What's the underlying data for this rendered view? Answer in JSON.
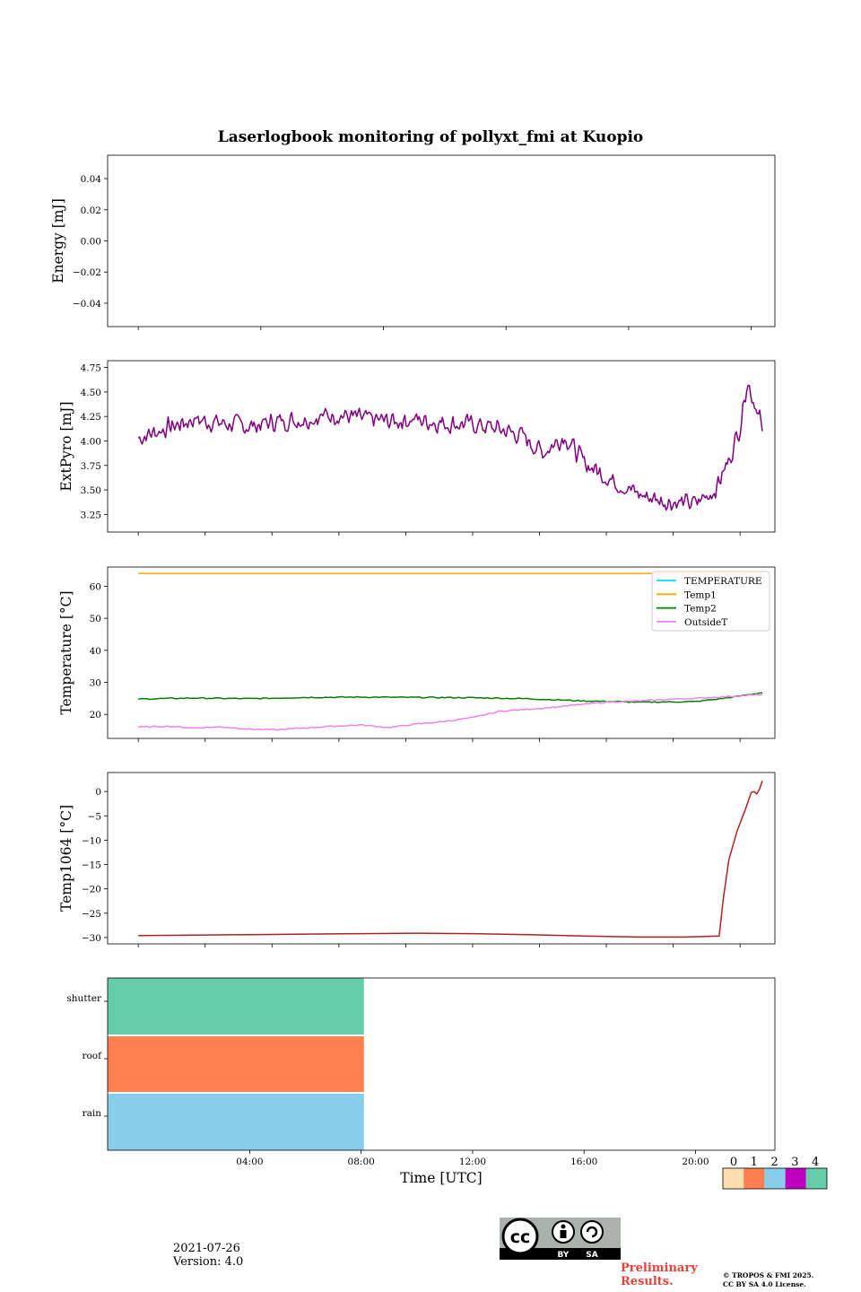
{
  "chart_data": {
    "title": "Laserlogbook monitoring of pollyxt_fmi at Kuopio",
    "x_axis": {
      "label": "Time [UTC]",
      "unit": "hours",
      "range": [
        -1.1,
        22.85
      ],
      "ticks": [
        4,
        8,
        12,
        16,
        20
      ],
      "tick_labels": [
        "04:00",
        "08:00",
        "12:00",
        "16:00",
        "20:00"
      ]
    },
    "panels": [
      {
        "name": "energy",
        "type": "line",
        "ylabel": "Energy [mJ]",
        "ylim": [
          -0.055,
          0.055
        ],
        "yticks": [
          0.04,
          0.02,
          0.0,
          -0.02,
          -0.04
        ],
        "ytick_labels": [
          "0.04",
          "0.02",
          "0.00",
          "−0.02",
          "−0.04"
        ],
        "series": []
      },
      {
        "name": "extpyro",
        "type": "line",
        "ylabel": "ExtPyro [mJ]",
        "ylim": [
          3.07,
          4.82
        ],
        "yticks": [
          4.75,
          4.5,
          4.25,
          4.0,
          3.75,
          3.5,
          3.25
        ],
        "ytick_labels": [
          "4.75",
          "4.50",
          "4.25",
          "4.00",
          "3.75",
          "3.50",
          "3.25"
        ],
        "series": [
          {
            "name": "ExtPyro",
            "color": "#800080",
            "x": [
              0.0,
              1.0,
              2.0,
              3.0,
              4.0,
              5.0,
              6.0,
              7.0,
              8.0,
              9.0,
              10.0,
              11.0,
              12.0,
              13.0,
              13.8,
              14.5,
              15.3,
              16.0,
              17.0,
              18.0,
              19.0,
              20.0,
              20.7,
              21.2,
              21.6,
              21.85,
              22.1,
              22.3,
              22.4
            ],
            "y": [
              4.03,
              4.13,
              4.22,
              4.18,
              4.15,
              4.2,
              4.22,
              4.27,
              4.23,
              4.2,
              4.22,
              4.18,
              4.17,
              4.12,
              4.05,
              3.88,
              4.05,
              3.78,
              3.6,
              3.45,
              3.38,
              3.36,
              3.5,
              3.8,
              4.15,
              4.62,
              4.4,
              4.3,
              4.02
            ],
            "noise_amplitude": 0.12
          }
        ]
      },
      {
        "name": "temperature",
        "type": "line",
        "ylabel": "Temperature [°C]",
        "ylim": [
          12.5,
          66.0
        ],
        "yticks": [
          60,
          50,
          40,
          30,
          20
        ],
        "ytick_labels": [
          "60",
          "50",
          "40",
          "30",
          "20"
        ],
        "legend": {
          "placement": "top-right",
          "entries": [
            "TEMPERATURE",
            "Temp1",
            "Temp2",
            "OutsideT"
          ]
        },
        "series": [
          {
            "name": "TEMPERATURE",
            "color": "#00e5ee",
            "x": [],
            "y": []
          },
          {
            "name": "Temp1",
            "color": "#ffa500",
            "x": [
              0.0,
              22.4
            ],
            "y": [
              64.0,
              64.0
            ]
          },
          {
            "name": "Temp2",
            "color": "#008000",
            "x": [
              0.0,
              2.0,
              4.0,
              6.0,
              8.0,
              10.0,
              12.0,
              14.0,
              16.0,
              18.0,
              20.0,
              21.0,
              22.4
            ],
            "y": [
              24.8,
              25.1,
              24.9,
              25.3,
              25.4,
              25.3,
              25.2,
              24.9,
              24.2,
              23.8,
              24.0,
              25.0,
              26.8
            ]
          },
          {
            "name": "OutsideT",
            "color": "#ee82ee",
            "x": [
              0.0,
              1.0,
              2.0,
              3.0,
              4.0,
              5.0,
              6.0,
              7.0,
              8.0,
              9.0,
              10.0,
              11.0,
              12.0,
              13.0,
              14.0,
              15.0,
              16.0,
              17.0,
              18.0,
              19.0,
              20.0,
              21.0,
              22.4
            ],
            "y": [
              16.0,
              16.3,
              15.8,
              16.1,
              15.4,
              15.2,
              15.8,
              16.3,
              16.7,
              15.9,
              17.0,
              17.8,
              19.0,
              21.0,
              21.6,
              22.3,
              23.2,
              23.9,
              24.2,
              24.7,
              25.0,
              25.5,
              26.2
            ]
          }
        ]
      },
      {
        "name": "temp1064",
        "type": "line",
        "ylabel": "Temp1064 [°C]",
        "ylim": [
          -31.3,
          3.9
        ],
        "yticks": [
          0,
          -5,
          -10,
          -15,
          -20,
          -25,
          -30
        ],
        "ytick_labels": [
          "0",
          "−5",
          "−10",
          "−15",
          "−20",
          "−25",
          "−30"
        ],
        "series": [
          {
            "name": "Temp1064",
            "color": "#b22222",
            "x": [
              0.0,
              2.0,
              4.0,
              6.0,
              8.0,
              10.0,
              12.0,
              14.0,
              16.0,
              18.0,
              19.5,
              20.2,
              20.85,
              21.0,
              21.2,
              21.5,
              21.8,
              22.0,
              22.1,
              22.2,
              22.3,
              22.4
            ],
            "y": [
              -29.6,
              -29.5,
              -29.4,
              -29.3,
              -29.2,
              -29.1,
              -29.2,
              -29.4,
              -29.7,
              -29.9,
              -29.9,
              -29.8,
              -29.7,
              -22.0,
              -14.0,
              -8.0,
              -3.5,
              -0.2,
              0.0,
              -0.5,
              0.5,
              2.2
            ]
          }
        ]
      },
      {
        "name": "status",
        "type": "heatmap",
        "rows": [
          "shutter",
          "roof",
          "rain"
        ],
        "bars": [
          {
            "row": "shutter",
            "start": -1.1,
            "end": 8.1,
            "status": 4
          },
          {
            "row": "roof",
            "start": -1.1,
            "end": 8.1,
            "status": 1
          },
          {
            "row": "rain",
            "start": -1.1,
            "end": 8.1,
            "status": 2
          }
        ]
      }
    ],
    "status_colorbar": {
      "labels": [
        "0",
        "1",
        "2",
        "3",
        "4"
      ],
      "colors": [
        "#ffdead",
        "#ff7f50",
        "#87ceeb",
        "#c000c0",
        "#66cdaa"
      ]
    }
  },
  "footer": {
    "date": "2021-07-26",
    "version": "Version: 4.0",
    "preliminary_line1": "Preliminary",
    "preliminary_line2": "Results.",
    "copyright_line1": "© TROPOS & FMI 2025.",
    "copyright_line2": "CC BY SA 4.0 License.",
    "cc_badge_by": "BY",
    "cc_badge_sa": "SA"
  }
}
